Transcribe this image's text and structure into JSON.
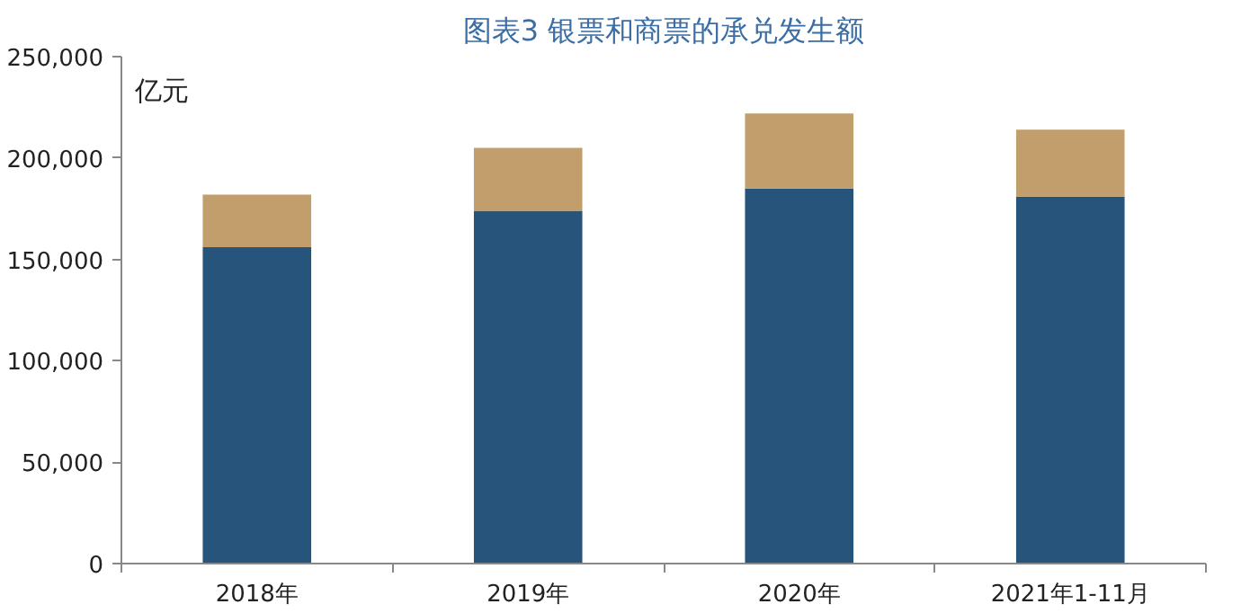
{
  "chart_data": {
    "type": "bar",
    "stacked": true,
    "title": "图表3 银票和商票的承兑发生额",
    "ylabel": "亿元",
    "categories": [
      "2018年",
      "2019年",
      "2020年",
      "2021年1-11月"
    ],
    "series": [
      {
        "color": "#27547a",
        "values": [
          156000,
          174000,
          185000,
          181000
        ]
      },
      {
        "color": "#c19e6c",
        "values": [
          26000,
          31000,
          37000,
          33000
        ]
      }
    ],
    "ylim": [
      0,
      250000
    ],
    "yticks": [
      {
        "value": 0,
        "label": "0"
      },
      {
        "value": 50000,
        "label": "50,000"
      },
      {
        "value": 100000,
        "label": "100,000"
      },
      {
        "value": 150000,
        "label": "150,000"
      },
      {
        "value": 200000,
        "label": "200,000"
      },
      {
        "value": 250000,
        "label": "250,000"
      }
    ],
    "grid": false
  }
}
